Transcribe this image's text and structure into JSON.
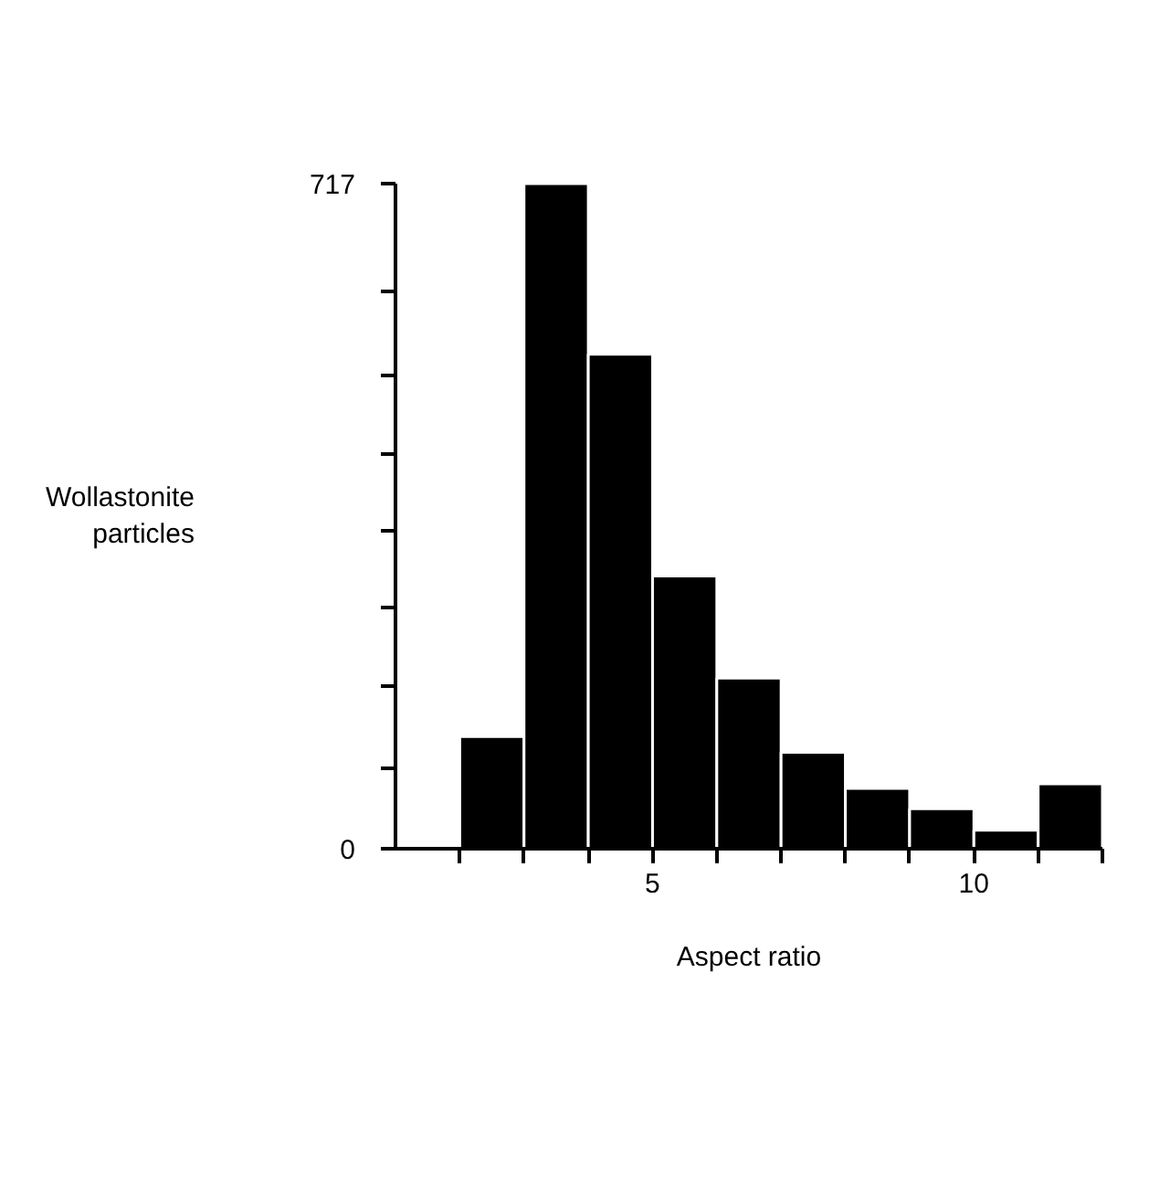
{
  "chart_data": {
    "type": "histogram",
    "xlabel": "Aspect ratio",
    "ylabel": "Wollastonite particles",
    "bins": [
      2,
      3,
      4,
      5,
      6,
      7,
      8,
      9,
      10,
      11,
      12
    ],
    "values": [
      121,
      717,
      533,
      294,
      184,
      104,
      65,
      43,
      20,
      70
    ],
    "color": "#000000",
    "xlim": [
      1,
      12
    ],
    "ylim": [
      0,
      717
    ],
    "xticks": [
      {
        "value": 2,
        "label": null
      },
      {
        "value": 3,
        "label": null
      },
      {
        "value": 4,
        "label": null
      },
      5,
      {
        "value": 6,
        "label": null
      },
      {
        "value": 7,
        "label": null
      },
      {
        "value": 8,
        "label": null
      },
      {
        "value": 9,
        "label": null
      },
      10,
      {
        "value": 11,
        "label": null
      },
      {
        "value": 12,
        "label": null
      }
    ],
    "yticks": [
      0,
      {
        "value": 87,
        "label": null
      },
      {
        "value": 175,
        "label": null
      },
      {
        "value": 260,
        "label": null
      },
      {
        "value": 342,
        "label": null
      },
      {
        "value": 426,
        "label": null
      },
      {
        "value": 510,
        "label": null
      },
      {
        "value": 600,
        "label": null
      },
      717
    ],
    "grid": false
  }
}
